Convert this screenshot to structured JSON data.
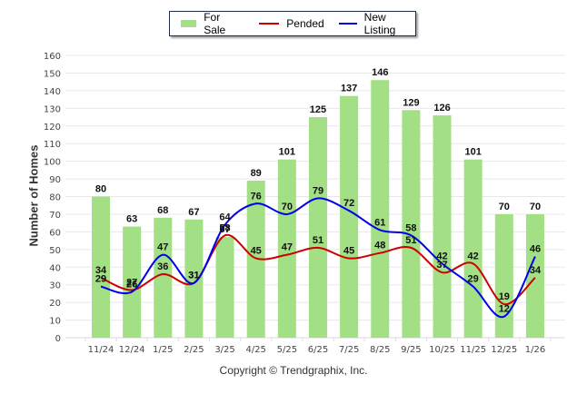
{
  "chart_data": {
    "type": "bar",
    "title": "",
    "xlabel": "",
    "ylabel": "Number of Homes",
    "ylim": [
      0,
      160
    ],
    "yticks": [
      0,
      10,
      20,
      30,
      40,
      50,
      60,
      70,
      80,
      90,
      100,
      110,
      120,
      130,
      140,
      150,
      160
    ],
    "grid": true,
    "legend_position": "top-center",
    "categories": [
      "11/24",
      "12/24",
      "1/25",
      "2/25",
      "3/25",
      "4/25",
      "5/25",
      "6/25",
      "7/25",
      "8/25",
      "9/25",
      "10/25",
      "11/25",
      "12/25",
      "1/26"
    ],
    "series": [
      {
        "name": "For Sale",
        "type": "bar",
        "color": "#a3df84",
        "values": [
          80,
          63,
          68,
          67,
          57,
          89,
          101,
          125,
          137,
          146,
          129,
          126,
          101,
          70,
          70
        ]
      },
      {
        "name": "Pended",
        "type": "line",
        "color": "#cc0000",
        "values": [
          34,
          27,
          36,
          31,
          58,
          45,
          47,
          51,
          45,
          48,
          51,
          37,
          42,
          19,
          34
        ]
      },
      {
        "name": "New Listing",
        "type": "line",
        "color": "#0000ee",
        "values": [
          29,
          26,
          47,
          31,
          64,
          76,
          70,
          79,
          72,
          61,
          58,
          42,
          29,
          12,
          46
        ]
      }
    ]
  },
  "footer": {
    "copyright": "Copyright © Trendgraphix, Inc."
  }
}
